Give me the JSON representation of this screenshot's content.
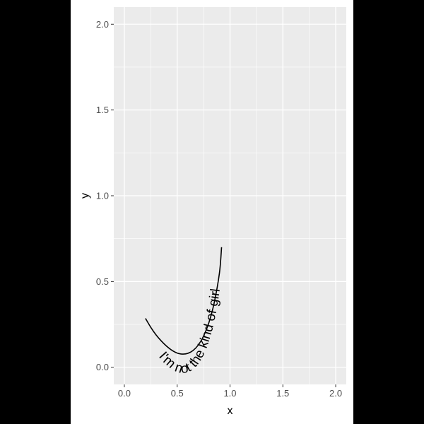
{
  "chart_data": {
    "type": "line",
    "title": "",
    "xlabel": "x",
    "ylabel": "y",
    "xlim": [
      -0.1,
      2.1
    ],
    "ylim": [
      -0.1,
      2.1
    ],
    "x_ticks": [
      0.0,
      0.5,
      1.0,
      1.5,
      2.0
    ],
    "x_tick_labels": [
      "0.0",
      "0.5",
      "1.0",
      "1.5",
      "2.0"
    ],
    "y_ticks": [
      0.0,
      0.5,
      1.0,
      1.5,
      2.0
    ],
    "y_tick_labels": [
      "0.0",
      "0.5",
      "1.0",
      "1.5",
      "2.0"
    ],
    "grid": true,
    "series": [
      {
        "x": [
          0.2,
          0.25,
          0.3,
          0.35,
          0.4,
          0.45,
          0.5,
          0.55,
          0.6,
          0.65,
          0.7,
          0.75,
          0.8,
          0.85,
          0.9,
          0.92
        ],
        "y": [
          0.285,
          0.233,
          0.189,
          0.153,
          0.123,
          0.099,
          0.083,
          0.077,
          0.081,
          0.098,
          0.13,
          0.182,
          0.26,
          0.375,
          0.55,
          0.7
        ]
      }
    ],
    "annotations": [
      {
        "text": "I'm not the kind of girl",
        "follows": "curve"
      }
    ]
  },
  "colors": {
    "panel": "#ebebeb",
    "grid_major": "#ffffff",
    "line": "#000000",
    "tick_text": "#4d4d4d",
    "background": "#ffffff"
  }
}
